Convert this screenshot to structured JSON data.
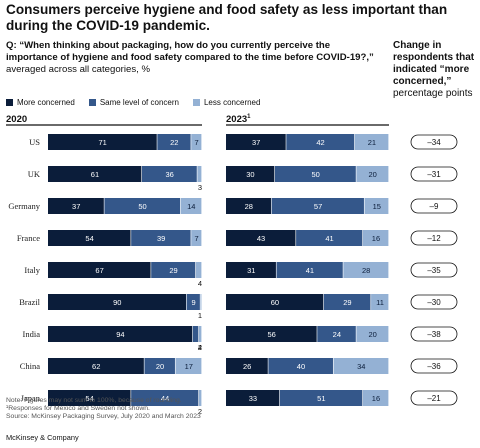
{
  "header": {
    "title": "Consumers perceive hygiene and food safety as less important than during the COVID-19 pandemic.",
    "question": "Q: “When thinking about packaging, how do you currently perceive the importance of hygiene and food safety compared to the time before COVID-19?,”",
    "question_sub": "averaged across all categories, %",
    "change_title": "Change in respondents that indicated “more concerned,”",
    "change_sub": "percentage points"
  },
  "legend": [
    {
      "label": "More concerned",
      "color": "#0b1d3a"
    },
    {
      "label": "Same level of concern",
      "color": "#34578a"
    },
    {
      "label": "Less concerned",
      "color": "#94b1d4"
    }
  ],
  "chart_data": {
    "type": "bar",
    "orientation": "horizontal-stacked",
    "categories": [
      "US",
      "UK",
      "Germany",
      "France",
      "Italy",
      "Brazil",
      "India",
      "China",
      "Japan"
    ],
    "panels": [
      {
        "label": "2020",
        "series": [
          {
            "name": "More concerned",
            "values": [
              71,
              61,
              37,
              54,
              67,
              90,
              94,
              62,
              54
            ]
          },
          {
            "name": "Same level of concern",
            "values": [
              22,
              36,
              50,
              39,
              29,
              9,
              4,
              20,
              44
            ]
          },
          {
            "name": "Less concerned",
            "values": [
              7,
              3,
              14,
              7,
              4,
              1,
              2,
              17,
              2
            ]
          }
        ]
      },
      {
        "label": "2023",
        "label_superscript": "1",
        "series": [
          {
            "name": "More concerned",
            "values": [
              37,
              30,
              28,
              43,
              31,
              60,
              56,
              26,
              33
            ]
          },
          {
            "name": "Same level of concern",
            "values": [
              42,
              50,
              57,
              41,
              41,
              29,
              24,
              40,
              51
            ]
          },
          {
            "name": "Less concerned",
            "values": [
              21,
              20,
              15,
              16,
              28,
              11,
              20,
              34,
              16
            ]
          }
        ]
      }
    ],
    "change": [
      "–34",
      "–31",
      "–9",
      "–12",
      "–35",
      "–30",
      "–38",
      "–36",
      "–21"
    ]
  },
  "footnotes": [
    "Note: Figures may not sum to 100%, because of rounding.",
    "¹Responses for Mexico and Sweden not shown.",
    "Source: McKinsey Packaging Survey, July 2020 and March 2023"
  ],
  "brand": "McKinsey & Company"
}
